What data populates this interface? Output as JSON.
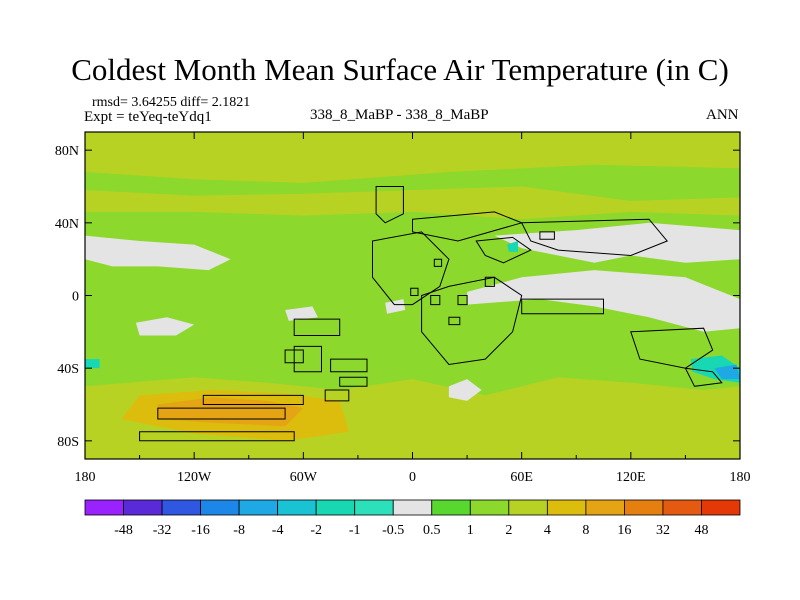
{
  "chart_data": {
    "type": "heatmap",
    "title": "Coldest Month Mean Surface Air Temperature (in C)",
    "stats_label": "rmsd= 3.64255 diff= 2.1821",
    "experiment_label": "Expt = teYeq-teYdq1",
    "comparison_label": "338_8_MaBP - 338_8_MaBP",
    "season_label": "ANN",
    "projection": "cylindrical equidistant",
    "field": "coldest month mean surface air temperature difference",
    "units": "C",
    "lon_range": [
      -180,
      180
    ],
    "lat_range": [
      -90,
      90
    ],
    "x_ticks": [
      {
        "value": -180,
        "label": "180"
      },
      {
        "value": -120,
        "label": "120W"
      },
      {
        "value": -60,
        "label": "60W"
      },
      {
        "value": 0,
        "label": "0"
      },
      {
        "value": 60,
        "label": "60E"
      },
      {
        "value": 120,
        "label": "120E"
      },
      {
        "value": 180,
        "label": "180"
      }
    ],
    "y_ticks": [
      {
        "value": 80,
        "label": "80N"
      },
      {
        "value": 40,
        "label": "40N"
      },
      {
        "value": 0,
        "label": "0"
      },
      {
        "value": -40,
        "label": "40S"
      },
      {
        "value": -80,
        "label": "80S"
      }
    ],
    "colorbar": {
      "levels": [
        "-48",
        "-32",
        "-16",
        "-8",
        "-4",
        "-2",
        "-1",
        "-0.5",
        "0.5",
        "1",
        "2",
        "4",
        "8",
        "16",
        "32",
        "48"
      ],
      "colors": [
        "#9a22ff",
        "#5a2ad8",
        "#2f57e2",
        "#1c87e8",
        "#1ea8e4",
        "#19c3d4",
        "#17d8b3",
        "#2ce0bb",
        "#e4e4e4",
        "#58d82e",
        "#8cd82c",
        "#b8d224",
        "#dcbc0c",
        "#e4a414",
        "#e47f10",
        "#e45a10",
        "#e43806"
      ]
    },
    "regions": [
      {
        "level_index": 10,
        "points": [
          [
            -180,
            90
          ],
          [
            180,
            90
          ],
          [
            180,
            -90
          ],
          [
            -180,
            -90
          ]
        ]
      },
      {
        "level_index": 11,
        "points": [
          [
            -180,
            90
          ],
          [
            180,
            90
          ],
          [
            180,
            70
          ],
          [
            100,
            72
          ],
          [
            20,
            68
          ],
          [
            -60,
            62
          ],
          [
            -120,
            64
          ],
          [
            -180,
            68
          ]
        ]
      },
      {
        "level_index": 11,
        "points": [
          [
            -180,
            58
          ],
          [
            -120,
            55
          ],
          [
            -60,
            56
          ],
          [
            0,
            58
          ],
          [
            60,
            60
          ],
          [
            120,
            52
          ],
          [
            180,
            54
          ],
          [
            180,
            44
          ],
          [
            120,
            46
          ],
          [
            60,
            42
          ],
          [
            0,
            46
          ],
          [
            -60,
            44
          ],
          [
            -120,
            46
          ],
          [
            -180,
            46
          ]
        ]
      },
      {
        "level_index": 11,
        "points": [
          [
            -180,
            -50
          ],
          [
            -120,
            -45
          ],
          [
            -80,
            -48
          ],
          [
            -40,
            -52
          ],
          [
            0,
            -46
          ],
          [
            40,
            -55
          ],
          [
            80,
            -45
          ],
          [
            120,
            -48
          ],
          [
            160,
            -52
          ],
          [
            180,
            -50
          ],
          [
            180,
            -90
          ],
          [
            -180,
            -90
          ]
        ]
      },
      {
        "level_index": 12,
        "points": [
          [
            -150,
            -55
          ],
          [
            -110,
            -52
          ],
          [
            -70,
            -54
          ],
          [
            -40,
            -58
          ],
          [
            -35,
            -75
          ],
          [
            -70,
            -80
          ],
          [
            -120,
            -76
          ],
          [
            -160,
            -68
          ]
        ]
      },
      {
        "level_index": 13,
        "points": [
          [
            -140,
            -60
          ],
          [
            -110,
            -56
          ],
          [
            -80,
            -58
          ],
          [
            -60,
            -62
          ],
          [
            -70,
            -72
          ],
          [
            -110,
            -70
          ],
          [
            -140,
            -68
          ]
        ]
      },
      {
        "level_index": 8,
        "points": [
          [
            -180,
            33
          ],
          [
            -150,
            30
          ],
          [
            -120,
            28
          ],
          [
            -100,
            20
          ],
          [
            -112,
            14
          ],
          [
            -140,
            16
          ],
          [
            -165,
            16
          ],
          [
            -180,
            20
          ]
        ]
      },
      {
        "level_index": 8,
        "points": [
          [
            -152,
            -15
          ],
          [
            -135,
            -12
          ],
          [
            -120,
            -16
          ],
          [
            -130,
            -22
          ],
          [
            -150,
            -22
          ]
        ]
      },
      {
        "level_index": 8,
        "points": [
          [
            30,
            -5
          ],
          [
            70,
            -2
          ],
          [
            100,
            -6
          ],
          [
            130,
            -12
          ],
          [
            160,
            -20
          ],
          [
            180,
            -18
          ],
          [
            180,
            -2
          ],
          [
            150,
            10
          ],
          [
            100,
            14
          ],
          [
            60,
            10
          ],
          [
            30,
            2
          ]
        ]
      },
      {
        "level_index": 8,
        "points": [
          [
            45,
            33
          ],
          [
            90,
            36
          ],
          [
            130,
            40
          ],
          [
            180,
            36
          ],
          [
            180,
            20
          ],
          [
            150,
            18
          ],
          [
            120,
            22
          ],
          [
            100,
            18
          ],
          [
            80,
            22
          ],
          [
            60,
            26
          ]
        ]
      },
      {
        "level_index": 8,
        "points": [
          [
            20,
            -50
          ],
          [
            30,
            -46
          ],
          [
            38,
            -52
          ],
          [
            30,
            -58
          ],
          [
            20,
            -56
          ]
        ]
      },
      {
        "level_index": 8,
        "points": [
          [
            -15,
            -4
          ],
          [
            -5,
            -2
          ],
          [
            -4,
            -8
          ],
          [
            -14,
            -10
          ]
        ]
      },
      {
        "level_index": 8,
        "points": [
          [
            -70,
            -8
          ],
          [
            -55,
            -6
          ],
          [
            -52,
            -12
          ],
          [
            -68,
            -14
          ]
        ]
      },
      {
        "level_index": 6,
        "points": [
          [
            153,
            -35
          ],
          [
            170,
            -33
          ],
          [
            180,
            -40
          ],
          [
            180,
            -48
          ],
          [
            166,
            -46
          ],
          [
            154,
            -42
          ]
        ]
      },
      {
        "level_index": 4,
        "points": [
          [
            166,
            -40
          ],
          [
            178,
            -38
          ],
          [
            180,
            -46
          ],
          [
            170,
            -46
          ]
        ]
      },
      {
        "level_index": 6,
        "points": [
          [
            -180,
            -35
          ],
          [
            -172,
            -35
          ],
          [
            -172,
            -40
          ],
          [
            -180,
            -40
          ]
        ]
      },
      {
        "level_index": 6,
        "points": [
          [
            52,
            28
          ],
          [
            58,
            30
          ],
          [
            58,
            24
          ],
          [
            53,
            24
          ]
        ]
      }
    ],
    "land_outlines": [
      [
        [
          -65,
          -13
        ],
        [
          -40,
          -13
        ],
        [
          -40,
          -22
        ],
        [
          -65,
          -22
        ]
      ],
      [
        [
          -65,
          -28
        ],
        [
          -50,
          -28
        ],
        [
          -50,
          -42
        ],
        [
          -65,
          -42
        ]
      ],
      [
        [
          -45,
          -35
        ],
        [
          -25,
          -35
        ],
        [
          -25,
          -42
        ],
        [
          -45,
          -42
        ]
      ],
      [
        [
          -140,
          -62
        ],
        [
          -70,
          -62
        ],
        [
          -70,
          -68
        ],
        [
          -140,
          -68
        ]
      ],
      [
        [
          -115,
          -55
        ],
        [
          -60,
          -55
        ],
        [
          -60,
          -60
        ],
        [
          -115,
          -60
        ]
      ],
      [
        [
          -40,
          -45
        ],
        [
          -25,
          -45
        ],
        [
          -25,
          -50
        ],
        [
          -40,
          -50
        ]
      ],
      [
        [
          -150,
          -75
        ],
        [
          -65,
          -75
        ],
        [
          -65,
          -80
        ],
        [
          -150,
          -80
        ]
      ],
      [
        [
          -48,
          -52
        ],
        [
          -35,
          -52
        ],
        [
          -35,
          -58
        ],
        [
          -48,
          -58
        ]
      ],
      [
        [
          -70,
          -30
        ],
        [
          -60,
          -30
        ],
        [
          -60,
          -37
        ],
        [
          -70,
          -37
        ]
      ],
      [
        [
          -20,
          60
        ],
        [
          -5,
          60
        ],
        [
          -5,
          45
        ],
        [
          -15,
          40
        ],
        [
          -20,
          45
        ]
      ],
      [
        [
          0,
          42
        ],
        [
          45,
          46
        ],
        [
          60,
          40
        ],
        [
          25,
          30
        ],
        [
          0,
          35
        ]
      ],
      [
        [
          -22,
          30
        ],
        [
          5,
          35
        ],
        [
          20,
          20
        ],
        [
          15,
          5
        ],
        [
          0,
          -5
        ],
        [
          -10,
          -5
        ],
        [
          -22,
          10
        ]
      ],
      [
        [
          5,
          0
        ],
        [
          20,
          5
        ],
        [
          45,
          10
        ],
        [
          60,
          0
        ],
        [
          55,
          -20
        ],
        [
          40,
          -35
        ],
        [
          20,
          -38
        ],
        [
          5,
          -20
        ]
      ],
      [
        [
          35,
          30
        ],
        [
          55,
          32
        ],
        [
          65,
          25
        ],
        [
          50,
          18
        ],
        [
          40,
          22
        ]
      ],
      [
        [
          60,
          -2
        ],
        [
          105,
          -2
        ],
        [
          105,
          -10
        ],
        [
          60,
          -10
        ]
      ],
      [
        [
          60,
          40
        ],
        [
          130,
          42
        ],
        [
          140,
          30
        ],
        [
          120,
          22
        ],
        [
          80,
          25
        ],
        [
          65,
          30
        ]
      ],
      [
        [
          120,
          -20
        ],
        [
          160,
          -18
        ],
        [
          165,
          -30
        ],
        [
          150,
          -40
        ],
        [
          125,
          -35
        ]
      ],
      [
        [
          150,
          -40
        ],
        [
          165,
          -42
        ],
        [
          170,
          -48
        ],
        [
          155,
          -50
        ]
      ],
      [
        [
          10,
          0
        ],
        [
          15,
          0
        ],
        [
          15,
          -5
        ],
        [
          10,
          -5
        ]
      ],
      [
        [
          25,
          0
        ],
        [
          30,
          0
        ],
        [
          30,
          -5
        ],
        [
          25,
          -5
        ]
      ],
      [
        [
          40,
          10
        ],
        [
          45,
          10
        ],
        [
          45,
          5
        ],
        [
          40,
          5
        ]
      ],
      [
        [
          12,
          20
        ],
        [
          16,
          20
        ],
        [
          16,
          16
        ],
        [
          12,
          16
        ]
      ],
      [
        [
          -1,
          4
        ],
        [
          3,
          4
        ],
        [
          3,
          0
        ],
        [
          -1,
          0
        ]
      ],
      [
        [
          70,
          35
        ],
        [
          78,
          35
        ],
        [
          78,
          31
        ],
        [
          70,
          31
        ]
      ],
      [
        [
          20,
          -12
        ],
        [
          26,
          -12
        ],
        [
          26,
          -16
        ],
        [
          20,
          -16
        ]
      ]
    ]
  }
}
